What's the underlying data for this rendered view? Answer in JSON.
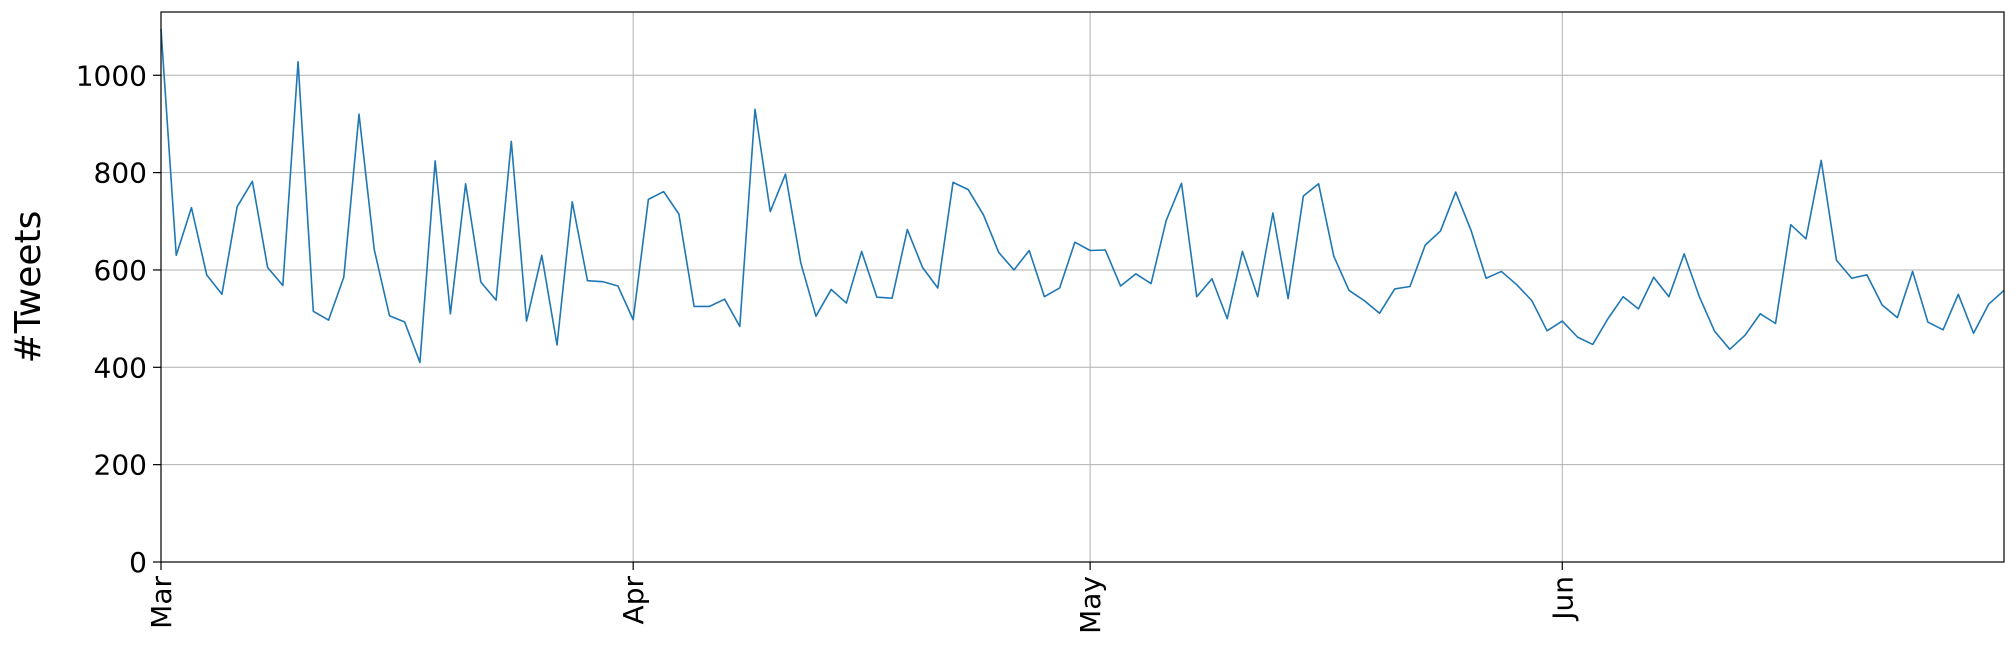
{
  "chart_data": {
    "type": "line",
    "title": "",
    "xlabel": "",
    "ylabel": "#Tweets",
    "x_tick_labels": [
      "Mar",
      "Apr",
      "May",
      "Jun"
    ],
    "y_tick_labels": [
      "0",
      "200",
      "400",
      "600",
      "800",
      "1000"
    ],
    "ylim": [
      0,
      1130
    ],
    "xlim": [
      "2019-03-01",
      "2019-06-30"
    ],
    "grid": true,
    "series": [
      {
        "color": "#1f77b4",
        "x": [
          "2019-03-01",
          "2019-03-02",
          "2019-03-03",
          "2019-03-04",
          "2019-03-05",
          "2019-03-06",
          "2019-03-07",
          "2019-03-08",
          "2019-03-09",
          "2019-03-10",
          "2019-03-11",
          "2019-03-12",
          "2019-03-13",
          "2019-03-14",
          "2019-03-15",
          "2019-03-16",
          "2019-03-17",
          "2019-03-18",
          "2019-03-19",
          "2019-03-20",
          "2019-03-21",
          "2019-03-22",
          "2019-03-23",
          "2019-03-24",
          "2019-03-25",
          "2019-03-26",
          "2019-03-27",
          "2019-03-28",
          "2019-03-29",
          "2019-03-30",
          "2019-03-31",
          "2019-04-01",
          "2019-04-02",
          "2019-04-03",
          "2019-04-04",
          "2019-04-05",
          "2019-04-06",
          "2019-04-07",
          "2019-04-08",
          "2019-04-09",
          "2019-04-10",
          "2019-04-11",
          "2019-04-12",
          "2019-04-13",
          "2019-04-14",
          "2019-04-15",
          "2019-04-16",
          "2019-04-17",
          "2019-04-18",
          "2019-04-19",
          "2019-04-20",
          "2019-04-21",
          "2019-04-22",
          "2019-04-23",
          "2019-04-24",
          "2019-04-25",
          "2019-04-26",
          "2019-04-27",
          "2019-04-28",
          "2019-04-29",
          "2019-04-30",
          "2019-05-01",
          "2019-05-02",
          "2019-05-03",
          "2019-05-04",
          "2019-05-05",
          "2019-05-06",
          "2019-05-07",
          "2019-05-08",
          "2019-05-09",
          "2019-05-10",
          "2019-05-11",
          "2019-05-12",
          "2019-05-13",
          "2019-05-14",
          "2019-05-15",
          "2019-05-16",
          "2019-05-17",
          "2019-05-18",
          "2019-05-19",
          "2019-05-20",
          "2019-05-21",
          "2019-05-22",
          "2019-05-23",
          "2019-05-24",
          "2019-05-25",
          "2019-05-26",
          "2019-05-27",
          "2019-05-28",
          "2019-05-29",
          "2019-05-30",
          "2019-05-31",
          "2019-06-01",
          "2019-06-02",
          "2019-06-03",
          "2019-06-04",
          "2019-06-05",
          "2019-06-06",
          "2019-06-07",
          "2019-06-08",
          "2019-06-09",
          "2019-06-10",
          "2019-06-11",
          "2019-06-12",
          "2019-06-13",
          "2019-06-14",
          "2019-06-15",
          "2019-06-16",
          "2019-06-17",
          "2019-06-18",
          "2019-06-19",
          "2019-06-20",
          "2019-06-21",
          "2019-06-22",
          "2019-06-23",
          "2019-06-24",
          "2019-06-25",
          "2019-06-26",
          "2019-06-27",
          "2019-06-28",
          "2019-06-29",
          "2019-06-30"
        ],
        "values": [
          1095,
          630,
          728,
          590,
          550,
          730,
          782,
          605,
          568,
          1028,
          515,
          497,
          585,
          920,
          642,
          506,
          493,
          410,
          824,
          510,
          777,
          575,
          538,
          864,
          495,
          630,
          446,
          740,
          578,
          576,
          567,
          498,
          745,
          761,
          715,
          525,
          525,
          540,
          484,
          930,
          720,
          797,
          615,
          505,
          560,
          532,
          638,
          544,
          542,
          683,
          605,
          563,
          780,
          765,
          713,
          636,
          600,
          640,
          545,
          563,
          657,
          640,
          641,
          567,
          592,
          572,
          702,
          778,
          545,
          582,
          500,
          638,
          545,
          717,
          541,
          752,
          777,
          628,
          558,
          537,
          511,
          561,
          566,
          651,
          680,
          760,
          682,
          583,
          597,
          570,
          537,
          475,
          495,
          462,
          447,
          500,
          545,
          520,
          585,
          545,
          633,
          545,
          474,
          437,
          466,
          510,
          490,
          693,
          664,
          825,
          620,
          583,
          590,
          528,
          502,
          597,
          493,
          477,
          550,
          470,
          530,
          558
        ]
      }
    ]
  }
}
